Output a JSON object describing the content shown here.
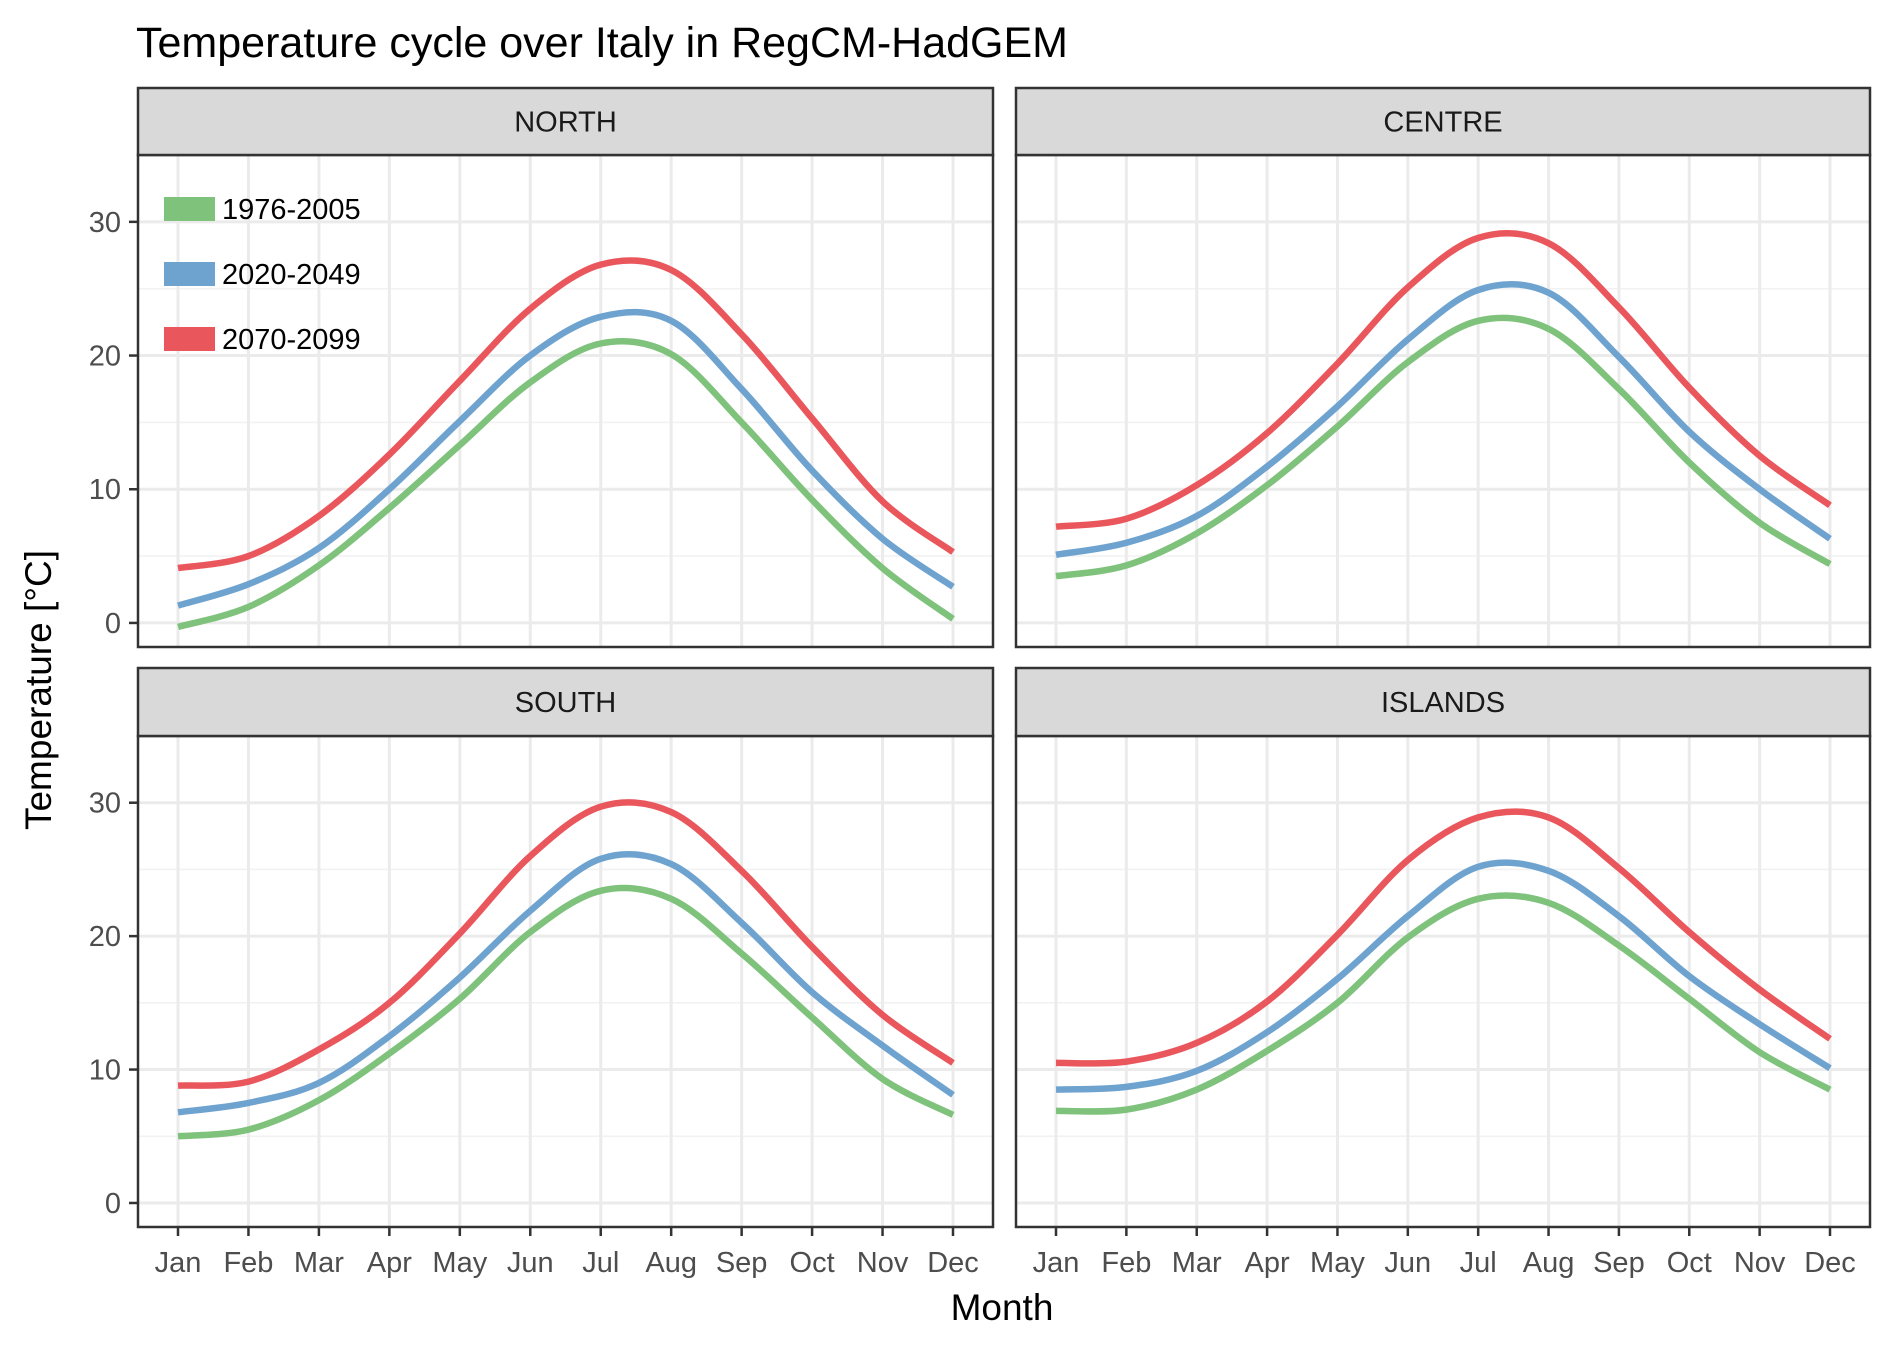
{
  "chart_data": {
    "type": "line",
    "title": "Temperature cycle over Italy in RegCM-HadGEM",
    "xlabel": "Month",
    "ylabel": "Temperature [°C]",
    "ylim": [
      -1.8,
      35
    ],
    "yticks": [
      0,
      10,
      20,
      30
    ],
    "categories": [
      "Jan",
      "Feb",
      "Mar",
      "Apr",
      "May",
      "Jun",
      "Jul",
      "Aug",
      "Sep",
      "Oct",
      "Nov",
      "Dec"
    ],
    "legend_position": "top-left",
    "grid": true,
    "series_styles": [
      {
        "name": "1976-2005",
        "color": "#7fc27c"
      },
      {
        "name": "2020-2049",
        "color": "#6fa3cf"
      },
      {
        "name": "2070-2099",
        "color": "#e9575d"
      }
    ],
    "panels": [
      {
        "name": "NORTH",
        "series": [
          {
            "name": "1976-2005",
            "values": [
              -0.3,
              1.2,
              4.3,
              8.6,
              13.3,
              18.0,
              20.9,
              20.1,
              15.0,
              9.2,
              4.1,
              0.3
            ]
          },
          {
            "name": "2020-2049",
            "values": [
              1.3,
              2.9,
              5.6,
              10.0,
              15.1,
              20.0,
              22.9,
              22.6,
              17.5,
              11.4,
              6.3,
              2.7
            ]
          },
          {
            "name": "2070-2099",
            "values": [
              4.1,
              5.0,
              8.0,
              12.6,
              18.1,
              23.5,
              26.8,
              26.4,
              21.6,
              15.3,
              9.1,
              5.3
            ]
          }
        ]
      },
      {
        "name": "CENTRE",
        "series": [
          {
            "name": "1976-2005",
            "values": [
              3.5,
              4.3,
              6.7,
              10.3,
              14.7,
              19.5,
              22.6,
              22.0,
              17.5,
              12.0,
              7.5,
              4.4
            ]
          },
          {
            "name": "2020-2049",
            "values": [
              5.1,
              6.0,
              8.0,
              11.7,
              16.2,
              21.2,
              24.9,
              24.7,
              19.9,
              14.3,
              10.0,
              6.3
            ]
          },
          {
            "name": "2070-2099",
            "values": [
              7.2,
              7.8,
              10.3,
              14.2,
              19.4,
              25.1,
              28.8,
              28.4,
              23.6,
              17.6,
              12.5,
              8.8
            ]
          }
        ]
      },
      {
        "name": "SOUTH",
        "series": [
          {
            "name": "1976-2005",
            "values": [
              5.0,
              5.5,
              7.7,
              11.2,
              15.3,
              20.3,
              23.4,
              22.8,
              18.7,
              13.9,
              9.3,
              6.6
            ]
          },
          {
            "name": "2020-2049",
            "values": [
              6.8,
              7.5,
              9.0,
              12.5,
              16.9,
              21.9,
              25.8,
              25.4,
              21.0,
              15.8,
              11.8,
              8.1
            ]
          },
          {
            "name": "2070-2099",
            "values": [
              8.8,
              9.1,
              11.5,
              15.0,
              20.2,
              26.0,
              29.7,
              29.3,
              24.9,
              19.2,
              14.1,
              10.5
            ]
          }
        ]
      },
      {
        "name": "ISLANDS",
        "series": [
          {
            "name": "1976-2005",
            "values": [
              6.9,
              7.0,
              8.5,
              11.4,
              15.0,
              19.9,
              22.8,
              22.5,
              19.3,
              15.3,
              11.3,
              8.5
            ]
          },
          {
            "name": "2020-2049",
            "values": [
              8.5,
              8.7,
              9.9,
              12.8,
              16.8,
              21.5,
              25.2,
              24.9,
              21.5,
              17.0,
              13.4,
              10.1
            ]
          },
          {
            "name": "2070-2099",
            "values": [
              10.5,
              10.6,
              12.0,
              15.1,
              20.1,
              25.7,
              28.9,
              28.9,
              25.1,
              20.3,
              16.0,
              12.3
            ]
          }
        ]
      }
    ]
  }
}
